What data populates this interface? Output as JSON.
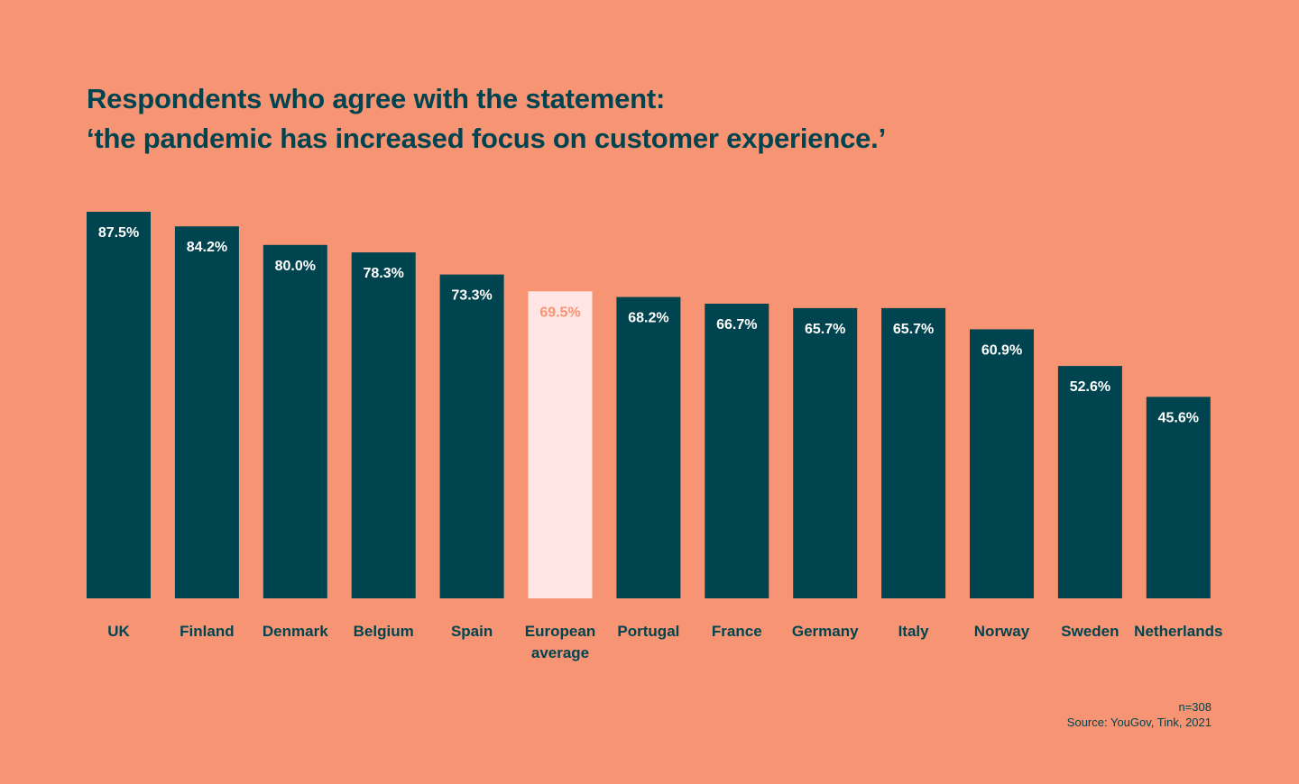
{
  "title": {
    "line1": "Respondents who agree with the statement:",
    "line2": "‘the pandemic has increased focus on customer experience.’"
  },
  "footnote": {
    "sample": "n=308",
    "source": "Source: YouGov, Tink, 2021"
  },
  "colors": {
    "background": "#F69473",
    "bar": "#00444F",
    "highlight_bar": "#FFE6E4",
    "bar_label": "#FFFFFF",
    "highlight_label": "#F69473",
    "text": "#00444F"
  },
  "chart_data": {
    "type": "bar",
    "categories": [
      "UK",
      "Finland",
      "Denmark",
      "Belgium",
      "Spain",
      "European average",
      "Portugal",
      "France",
      "Germany",
      "Italy",
      "Norway",
      "Sweden",
      "Netherlands"
    ],
    "category_lines": [
      [
        "UK"
      ],
      [
        "Finland"
      ],
      [
        "Denmark"
      ],
      [
        "Belgium"
      ],
      [
        "Spain"
      ],
      [
        "European",
        "average"
      ],
      [
        "Portugal"
      ],
      [
        "France"
      ],
      [
        "Germany"
      ],
      [
        "Italy"
      ],
      [
        "Norway"
      ],
      [
        "Sweden"
      ],
      [
        "Netherlands"
      ]
    ],
    "values": [
      87.5,
      84.2,
      80.0,
      78.3,
      73.3,
      69.5,
      68.2,
      66.7,
      65.7,
      65.7,
      60.9,
      52.6,
      45.6
    ],
    "value_labels": [
      "87.5%",
      "84.2%",
      "80.0%",
      "78.3%",
      "73.3%",
      "69.5%",
      "68.2%",
      "66.7%",
      "65.7%",
      "65.7%",
      "60.9%",
      "52.6%",
      "45.6%"
    ],
    "highlight": "European average",
    "ylim": [
      0,
      87.5
    ],
    "grid": false,
    "legend": "none"
  }
}
